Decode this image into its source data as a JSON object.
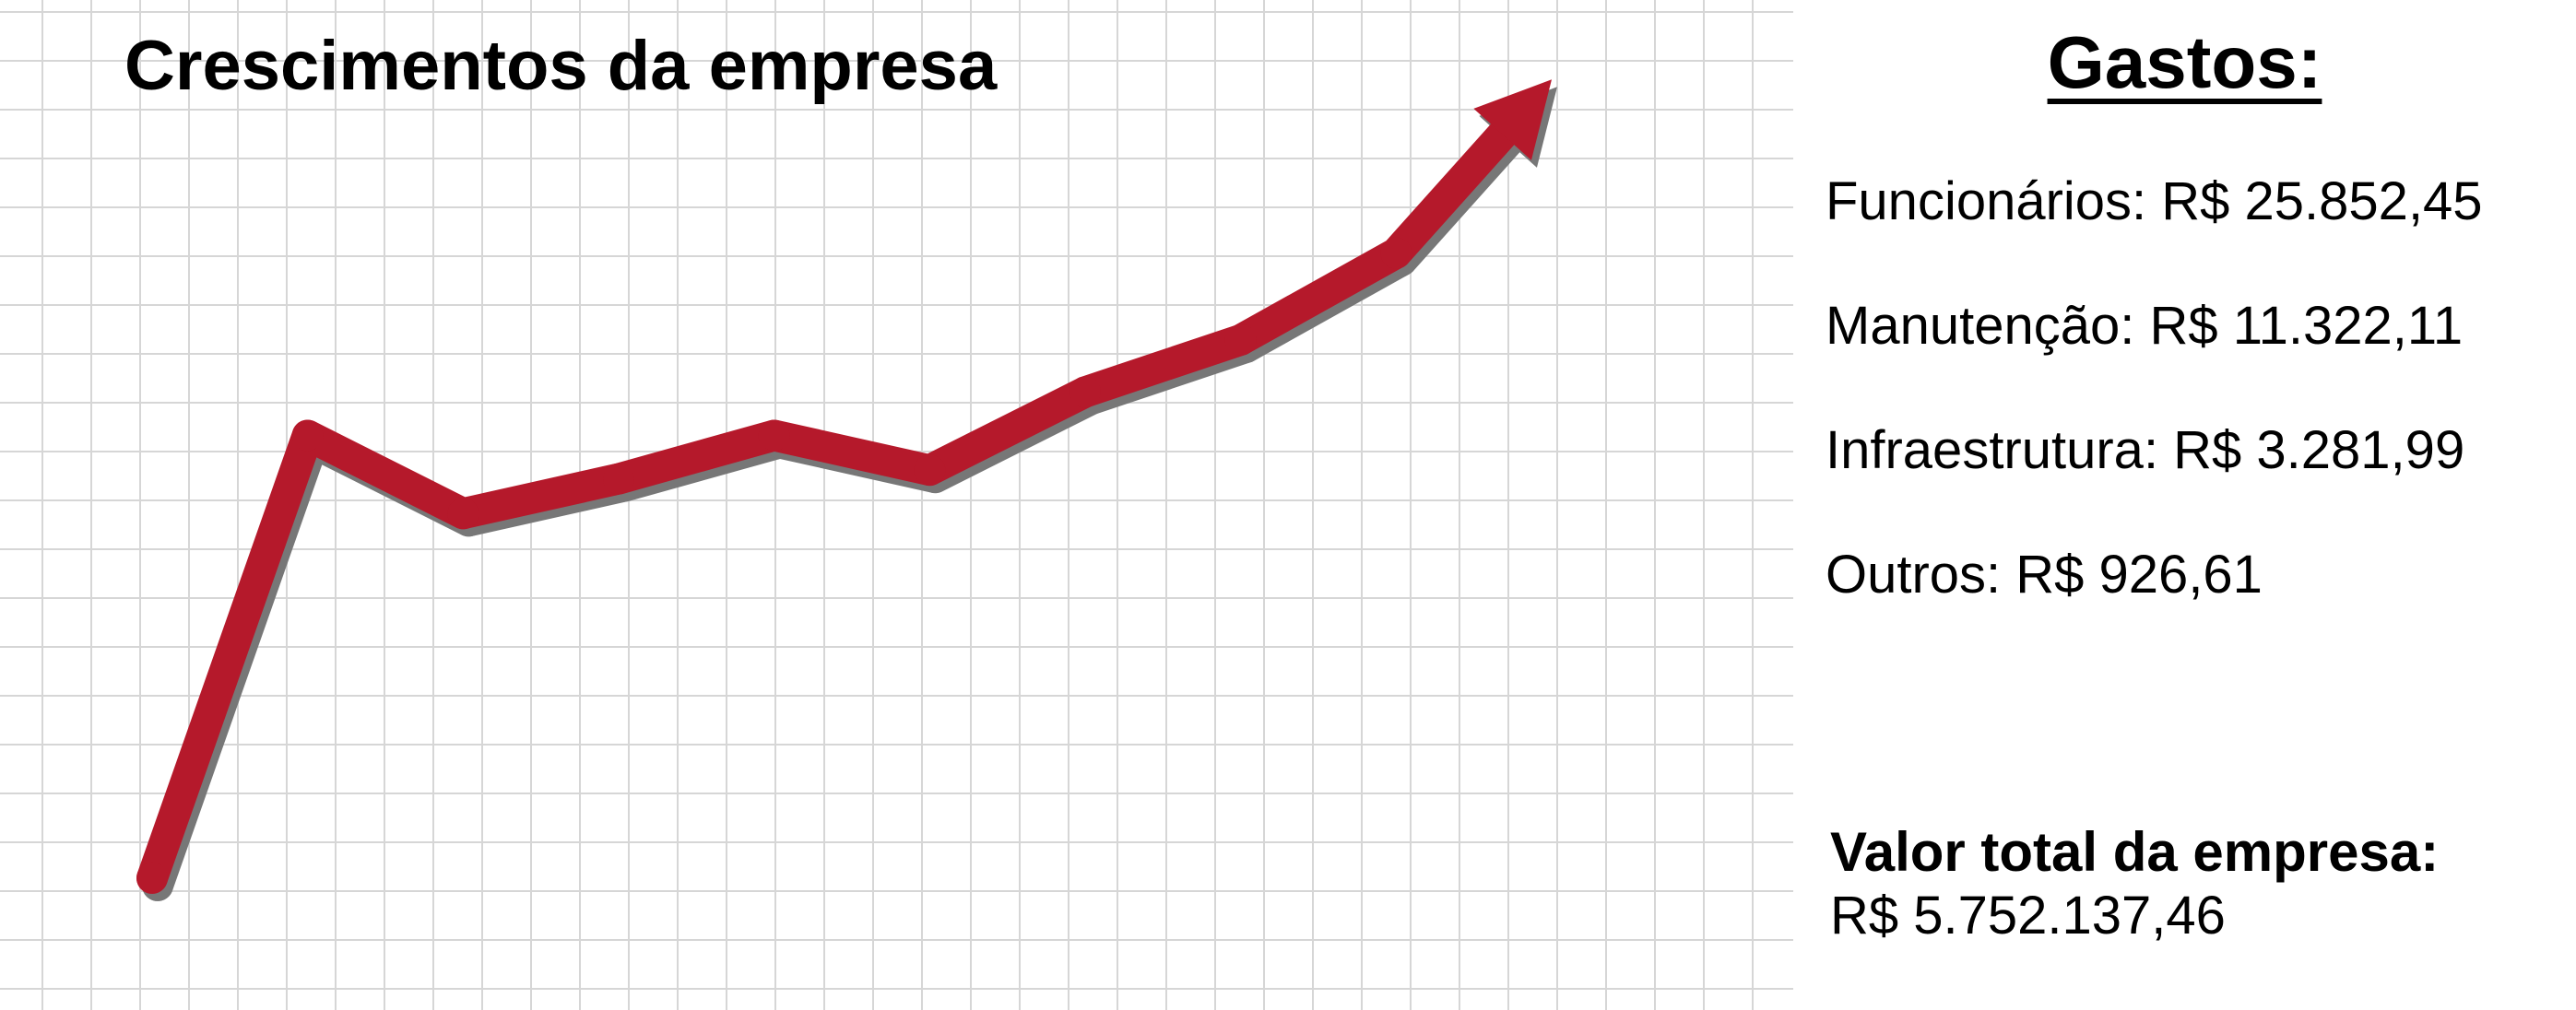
{
  "chart_data": {
    "type": "line",
    "title": "Crescimentos da empresa",
    "x": [
      1,
      2,
      3,
      4,
      5,
      6,
      7,
      8,
      9,
      10
    ],
    "values": [
      0.05,
      0.56,
      0.47,
      0.51,
      0.56,
      0.52,
      0.61,
      0.67,
      0.77,
      0.97
    ],
    "line_color": "#b5192b",
    "shadow_color": "#777777",
    "grid": true,
    "arrow_head": true
  },
  "expenses": {
    "title": "Gastos:",
    "items": [
      {
        "label": "Funcionários: R$ 25.852,45"
      },
      {
        "label": "Manutenção: R$ 11.322,11"
      },
      {
        "label": "Infraestrutura: R$ 3.281,99"
      },
      {
        "label": "Outros: R$ 926,61"
      }
    ]
  },
  "total": {
    "label": "Valor total da empresa:",
    "value": "R$ 5.752.137,46"
  }
}
